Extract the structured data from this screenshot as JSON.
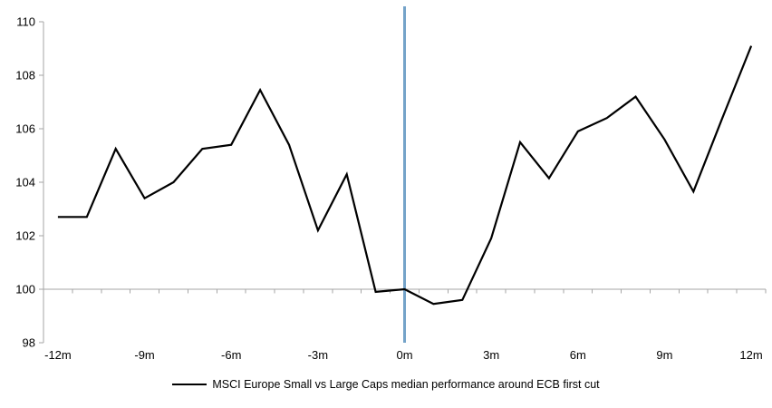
{
  "chart_data": {
    "type": "line",
    "title": "",
    "xlabel": "",
    "ylabel": "",
    "x_months": [
      -12,
      -11,
      -10,
      -9,
      -8,
      -7,
      -6,
      -5,
      -4,
      -3,
      -2,
      -1,
      0,
      1,
      2,
      3,
      4,
      5,
      6,
      7,
      8,
      9,
      10,
      11,
      12
    ],
    "series": [
      {
        "name": "MSCI Europe Small vs Large Caps median performance around ECB first cut",
        "color": "#000000",
        "values": [
          102.7,
          102.7,
          105.25,
          103.4,
          104.0,
          105.25,
          105.4,
          107.45,
          105.4,
          102.2,
          104.3,
          99.9,
          100.0,
          99.45,
          99.6,
          101.9,
          105.5,
          104.15,
          105.9,
          106.4,
          107.2,
          105.6,
          103.65,
          106.4,
          109.1
        ]
      }
    ],
    "ylim": [
      98,
      110
    ],
    "y_ticks": [
      98,
      100,
      102,
      104,
      106,
      108,
      110
    ],
    "x_tick_months": [
      -12,
      -9,
      -6,
      -3,
      0,
      3,
      6,
      9,
      12
    ],
    "x_tick_labels": [
      "-12m",
      "-9m",
      "-6m",
      "-3m",
      "0m",
      "3m",
      "6m",
      "9m",
      "12m"
    ],
    "x_axis_cross_value": 100,
    "event_line": {
      "month": 0,
      "color": "#74a3c9"
    },
    "axis_color": "#a6a6a6",
    "grid": "none (x-axis drawn at y=100 with category-boundary ticks)",
    "legend_position": "bottom-center"
  }
}
